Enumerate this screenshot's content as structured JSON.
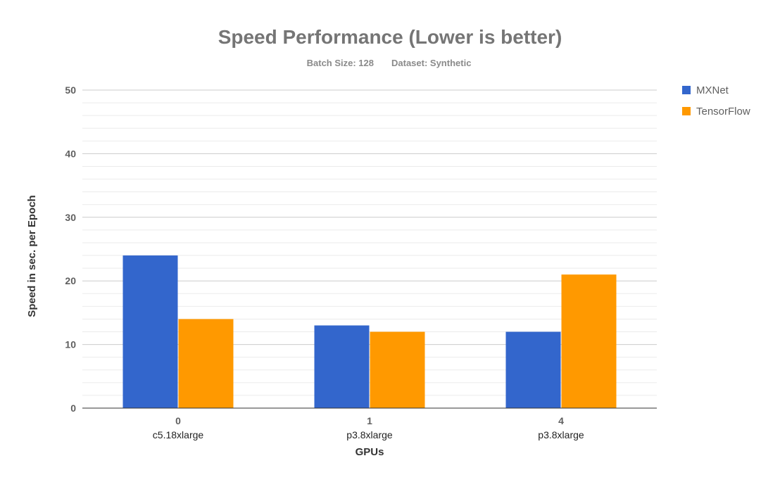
{
  "chart_data": {
    "type": "bar",
    "title": "Speed Performance (Lower is better)",
    "subtitle_items": [
      "Batch Size: 128",
      "Dataset: Synthetic"
    ],
    "xlabel": "GPUs",
    "ylabel": "Speed in sec. per Epoch",
    "categories": [
      {
        "primary": "0",
        "secondary": "c5.18xlarge"
      },
      {
        "primary": "1",
        "secondary": "p3.8xlarge"
      },
      {
        "primary": "4",
        "secondary": "p3.8xlarge"
      }
    ],
    "series": [
      {
        "name": "MXNet",
        "color": "#3366cc",
        "values": [
          24,
          13,
          12
        ]
      },
      {
        "name": "TensorFlow",
        "color": "#ff9900",
        "values": [
          14,
          12,
          21
        ]
      }
    ],
    "ylim": [
      0,
      50
    ],
    "yticks": [
      0,
      10,
      20,
      30,
      40,
      50
    ],
    "minor_gridlines_per_major": 5,
    "grid": true,
    "legend_position": "right"
  }
}
